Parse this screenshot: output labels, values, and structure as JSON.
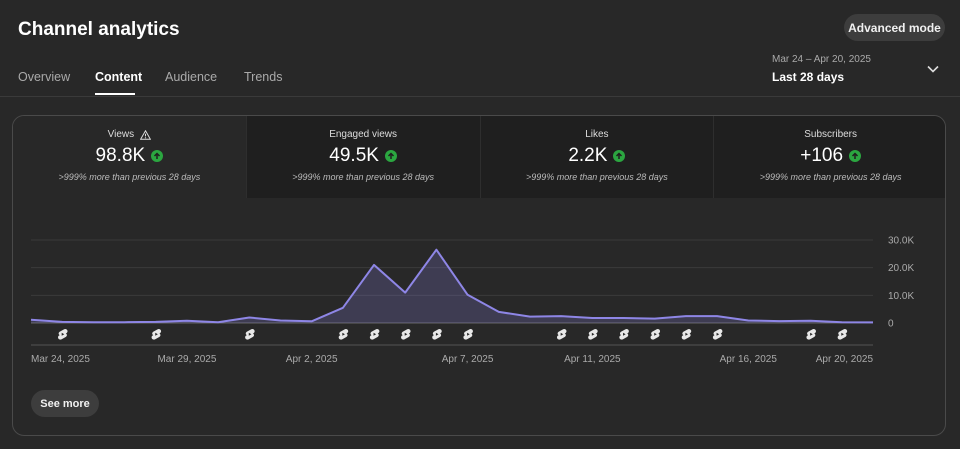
{
  "header": {
    "title": "Channel analytics",
    "advanced_mode_label": "Advanced mode"
  },
  "tabs": [
    {
      "label": "Overview",
      "active": false
    },
    {
      "label": "Content",
      "active": true
    },
    {
      "label": "Audience",
      "active": false
    },
    {
      "label": "Trends",
      "active": false
    }
  ],
  "date_range": {
    "range": "Mar 24 – Apr 20, 2025",
    "label": "Last 28 days"
  },
  "metrics": [
    {
      "label": "Views",
      "value": "98.8K",
      "comparison": ">999% more than previous 28 days",
      "warning_icon": "warning-icon"
    },
    {
      "label": "Engaged views",
      "value": "49.5K",
      "comparison": ">999% more than previous 28 days"
    },
    {
      "label": "Likes",
      "value": "2.2K",
      "comparison": ">999% more than previous 28 days"
    },
    {
      "label": "Subscribers",
      "value": "+106",
      "comparison": ">999% more than previous 28 days"
    }
  ],
  "colors": {
    "accent_line": "#8e86e6",
    "up_badge": "#2ba640"
  },
  "chart_data": {
    "type": "area",
    "y_ticks": [
      "30.0K",
      "20.0K",
      "10.0K",
      "0"
    ],
    "ylim": [
      0,
      30000
    ],
    "x_tick_labels": [
      "Mar 24, 2025",
      "Mar 29, 2025",
      "Apr 2, 2025",
      "Apr 7, 2025",
      "Apr 11, 2025",
      "Apr 16, 2025",
      "Apr 20, 2025"
    ],
    "x": [
      "Mar 24",
      "Mar 25",
      "Mar 26",
      "Mar 27",
      "Mar 28",
      "Mar 29",
      "Mar 30",
      "Mar 31",
      "Apr 1",
      "Apr 2",
      "Apr 3",
      "Apr 4",
      "Apr 5",
      "Apr 6",
      "Apr 7",
      "Apr 8",
      "Apr 9",
      "Apr 10",
      "Apr 11",
      "Apr 12",
      "Apr 13",
      "Apr 14",
      "Apr 15",
      "Apr 16",
      "Apr 17",
      "Apr 18",
      "Apr 19",
      "Apr 20"
    ],
    "values": [
      1200,
      400,
      300,
      300,
      400,
      800,
      300,
      2000,
      900,
      600,
      5500,
      21000,
      11000,
      26500,
      10200,
      4000,
      2300,
      2500,
      1800,
      1800,
      1600,
      2500,
      2500,
      900,
      700,
      800,
      300,
      200
    ],
    "video_markers": [
      "Mar 25",
      "Mar 28",
      "Mar 31",
      "Apr 3",
      "Apr 4",
      "Apr 5",
      "Apr 6",
      "Apr 7",
      "Apr 10",
      "Apr 11",
      "Apr 12",
      "Apr 13",
      "Apr 14",
      "Apr 15",
      "Apr 18",
      "Apr 19"
    ],
    "grid": true
  },
  "see_more_label": "See more"
}
